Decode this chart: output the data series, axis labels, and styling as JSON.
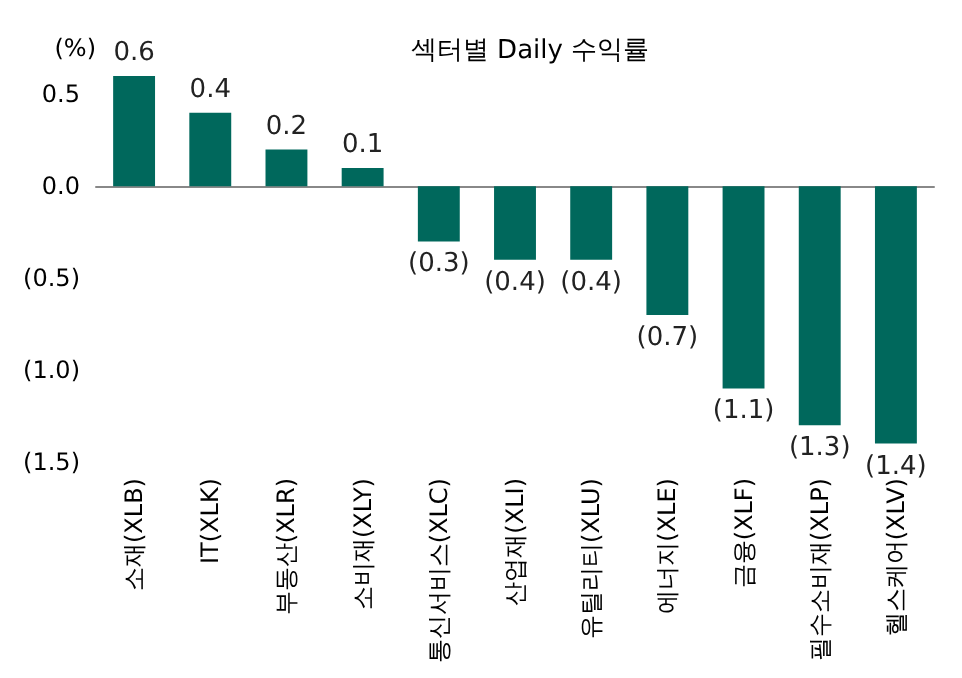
{
  "chart_data": {
    "type": "bar",
    "title": "섹터별 Daily 수익률",
    "ylabel": "(%)",
    "categories": [
      "소재(XLB)",
      "IT(XLK)",
      "부동산(XLR)",
      "소비재(XLY)",
      "통신서비스(XLC)",
      "산업재(XLI)",
      "유틸리티(XLU)",
      "에너지(XLE)",
      "금융(XLF)",
      "필수소비재(XLP)",
      "헬스케어(XLV)"
    ],
    "values": [
      0.6,
      0.4,
      0.2,
      0.1,
      -0.3,
      -0.4,
      -0.4,
      -0.7,
      -1.1,
      -1.3,
      -1.4
    ],
    "value_labels": [
      "0.6",
      "0.4",
      "0.2",
      "0.1",
      "(0.3)",
      "(0.4)",
      "(0.4)",
      "(0.7)",
      "(1.1)",
      "(1.3)",
      "(1.4)"
    ],
    "color": "#00685c",
    "ylim": [
      -1.5,
      0.6
    ],
    "yticks": [
      {
        "value": -1.5,
        "label": "(1.5)"
      },
      {
        "value": -1.0,
        "label": "(1.0)"
      },
      {
        "value": -0.5,
        "label": "(0.5)"
      },
      {
        "value": 0,
        "label": "0.0"
      },
      {
        "value": 0.5,
        "label": "0.5"
      }
    ]
  }
}
